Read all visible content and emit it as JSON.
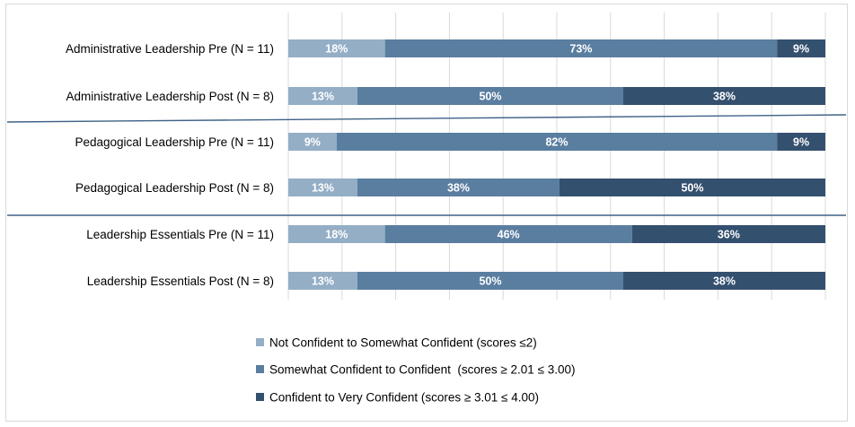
{
  "chart_data": {
    "type": "bar",
    "orientation": "horizontal",
    "stacked": true,
    "percent_stacked": true,
    "categories": [
      "Administrative Leadership Pre (N = 11)",
      "Administrative Leadership Post (N = 8)",
      "Pedagogical Leadership Pre (N = 11)",
      "Pedagogical Leadership Post (N = 8)",
      "Leadership Essentials Pre (N = 11)",
      "Leadership Essentials Post (N = 8)"
    ],
    "series": [
      {
        "name": "Not Confident to Somewhat Confident (scores ≤2)",
        "color": "#94aec6",
        "values": [
          18,
          13,
          9,
          13,
          18,
          13
        ],
        "labels": [
          "18%",
          "13%",
          "9%",
          "13%",
          "18%",
          "13%"
        ]
      },
      {
        "name": "Somewhat Confident to Confident  (scores ≥ 2.01 ≤ 3.00)",
        "color": "#5a7ea0",
        "values": [
          73,
          50,
          82,
          38,
          46,
          50
        ],
        "labels": [
          "73%",
          "50%",
          "82%",
          "38%",
          "46%",
          "50%"
        ]
      },
      {
        "name": "Confident to Very Confident (scores ≥ 3.01 ≤ 4.00)",
        "color": "#34506f",
        "values": [
          9,
          38,
          9,
          50,
          36,
          38
        ],
        "labels": [
          "9%",
          "38%",
          "9%",
          "50%",
          "36%",
          "38%"
        ]
      }
    ],
    "xlim": [
      0,
      100
    ],
    "grid": true,
    "legend_position": "bottom",
    "group_dividers_after": [
      1,
      3
    ]
  }
}
